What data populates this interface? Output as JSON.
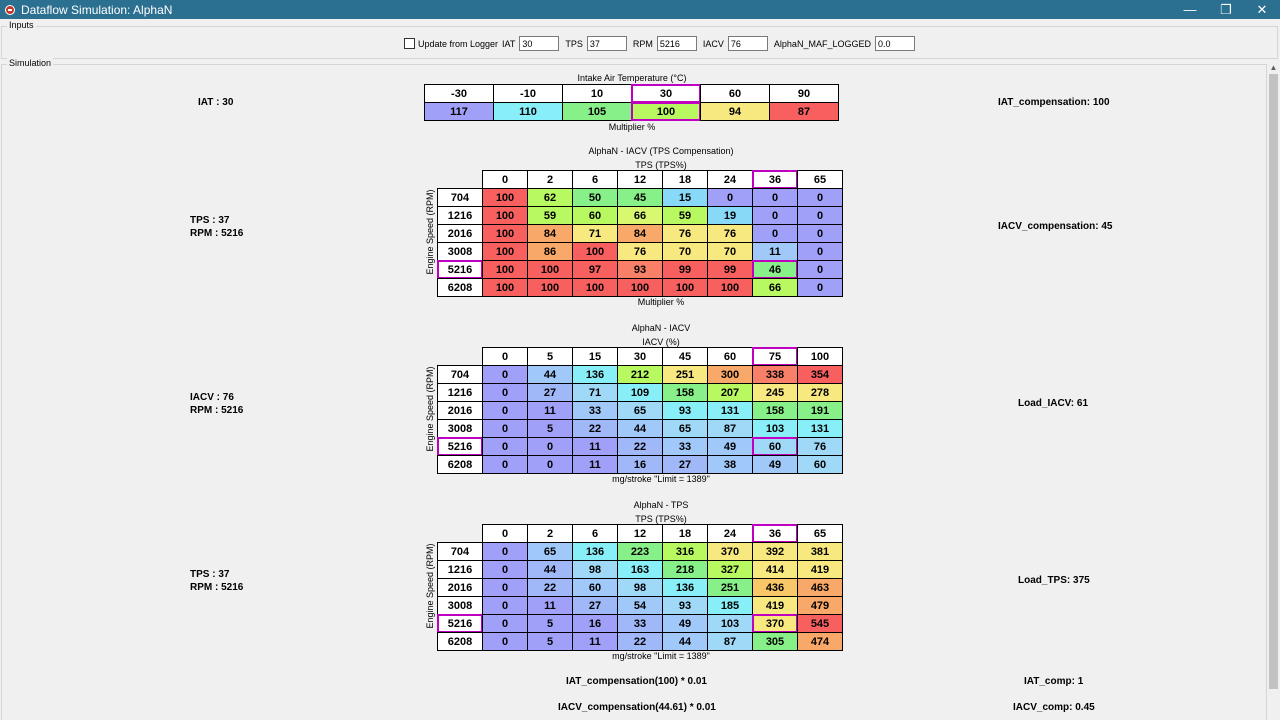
{
  "window": {
    "title": "Dataflow Simulation: AlphaN",
    "min_icon": "minimize-icon",
    "max_icon": "restore-icon",
    "close_icon": "close-icon"
  },
  "inputs": {
    "group_label": "Inputs",
    "update_label": "Update from Logger",
    "iat_label": "IAT",
    "iat_value": "30",
    "tps_label": "TPS",
    "tps_value": "37",
    "rpm_label": "RPM",
    "rpm_value": "5216",
    "iacv_label": "IACV",
    "iacv_value": "76",
    "maf_label": "AlphaN_MAF_LOGGED",
    "maf_value": "0.0"
  },
  "simulation": {
    "group_label": "Simulation",
    "iat_block": {
      "left_text": "IAT : 30",
      "right_text": "IAT_compensation: 100",
      "title": "Intake Air Temperature (°C)",
      "footer": "Multiplier %",
      "headers": [
        "-30",
        "-10",
        "10",
        "30",
        "60",
        "90"
      ],
      "values": [
        "117",
        "110",
        "105",
        "100",
        "94",
        "87"
      ],
      "colors": [
        "#a0a0f8",
        "#88eef8",
        "#88f088",
        "#b8f860",
        "#f8e880",
        "#f86060"
      ],
      "selected": 3
    },
    "tables": [
      {
        "left_line1": "TPS : 37",
        "left_line2": "RPM : 5216",
        "right_text": "IACV_compensation: 45",
        "title": "AlphaN - IACV (TPS Compensation)",
        "subtitle": "TPS (TPS%)",
        "ylabel": "Engine Speed (RPM)",
        "footer": "Multiplier %",
        "col_headers": [
          "0",
          "2",
          "6",
          "12",
          "18",
          "24",
          "36",
          "65"
        ],
        "row_headers": [
          "704",
          "1216",
          "2016",
          "3008",
          "5216",
          "6208"
        ],
        "rows": [
          [
            "100",
            "62",
            "50",
            "45",
            "15",
            "0",
            "0",
            "0"
          ],
          [
            "100",
            "59",
            "60",
            "66",
            "59",
            "19",
            "0",
            "0"
          ],
          [
            "100",
            "84",
            "71",
            "84",
            "76",
            "76",
            "0",
            "0"
          ],
          [
            "100",
            "86",
            "100",
            "76",
            "70",
            "70",
            "11",
            "0"
          ],
          [
            "100",
            "100",
            "97",
            "93",
            "99",
            "99",
            "46",
            "0"
          ],
          [
            "100",
            "100",
            "100",
            "100",
            "100",
            "100",
            "66",
            "0"
          ]
        ],
        "colors": [
          [
            "#f86060",
            "#b8f860",
            "#88f088",
            "#88f088",
            "#88d8f8",
            "#a0a0f8",
            "#a0a0f8",
            "#a0a0f8"
          ],
          [
            "#f86060",
            "#b8f860",
            "#b8f860",
            "#d8f870",
            "#b8f860",
            "#88d8f8",
            "#a0a0f8",
            "#a0a0f8"
          ],
          [
            "#f86060",
            "#f8a868",
            "#f8e880",
            "#f8a868",
            "#f8e880",
            "#f8e880",
            "#a0a0f8",
            "#a0a0f8"
          ],
          [
            "#f86060",
            "#f8a868",
            "#f86060",
            "#f8e880",
            "#f8e880",
            "#f8e880",
            "#a0c8f8",
            "#a0a0f8"
          ],
          [
            "#f86060",
            "#f86060",
            "#f86060",
            "#f88068",
            "#f86060",
            "#f86060",
            "#88f088",
            "#a0a0f8"
          ],
          [
            "#f86060",
            "#f86060",
            "#f86060",
            "#f86060",
            "#f86060",
            "#f86060",
            "#b8f860",
            "#a0a0f8"
          ]
        ],
        "sel_row": 4,
        "sel_col": 6
      },
      {
        "left_line1": "IACV : 76",
        "left_line2": "RPM : 5216",
        "right_text": "Load_IACV: 61",
        "title": "AlphaN - IACV",
        "subtitle": "IACV (%)",
        "ylabel": "Engine Speed (RPM)",
        "footer": "mg/stroke \"Limit = 1389\"",
        "col_headers": [
          "0",
          "5",
          "15",
          "30",
          "45",
          "60",
          "75",
          "100"
        ],
        "row_headers": [
          "704",
          "1216",
          "2016",
          "3008",
          "5216",
          "6208"
        ],
        "rows": [
          [
            "0",
            "44",
            "136",
            "212",
            "251",
            "300",
            "338",
            "354"
          ],
          [
            "0",
            "27",
            "71",
            "109",
            "158",
            "207",
            "245",
            "278"
          ],
          [
            "0",
            "11",
            "33",
            "65",
            "93",
            "131",
            "158",
            "191"
          ],
          [
            "0",
            "5",
            "22",
            "44",
            "65",
            "87",
            "103",
            "131"
          ],
          [
            "0",
            "0",
            "11",
            "22",
            "33",
            "49",
            "60",
            "76"
          ],
          [
            "0",
            "0",
            "11",
            "16",
            "27",
            "38",
            "49",
            "60"
          ]
        ],
        "colors": [
          [
            "#a0a0f8",
            "#a0c8f8",
            "#88eef8",
            "#b8f860",
            "#f8e880",
            "#f8a868",
            "#f88068",
            "#f86060"
          ],
          [
            "#a0a0f8",
            "#a0b8f8",
            "#a0d8f8",
            "#88eef8",
            "#88f088",
            "#b8f860",
            "#f8e880",
            "#f8e880"
          ],
          [
            "#a0a0f8",
            "#a0a0f8",
            "#a0c8f8",
            "#a0d8f8",
            "#88eef8",
            "#88eef8",
            "#88f088",
            "#88f088"
          ],
          [
            "#a0a0f8",
            "#a0a0f8",
            "#a0b8f8",
            "#a0c8f8",
            "#a0d8f8",
            "#a0d8f8",
            "#88eef8",
            "#88eef8"
          ],
          [
            "#a0a0f8",
            "#a0a0f8",
            "#a0a0f8",
            "#a0b8f8",
            "#a0c8f8",
            "#a0c8f8",
            "#a0d8f8",
            "#a0d8f8"
          ],
          [
            "#a0a0f8",
            "#a0a0f8",
            "#a0a0f8",
            "#a0b8f8",
            "#a0b8f8",
            "#a0c8f8",
            "#a0c8f8",
            "#a0d8f8"
          ]
        ],
        "sel_row": 4,
        "sel_col": 6
      },
      {
        "left_line1": "TPS : 37",
        "left_line2": "RPM : 5216",
        "right_text": "Load_TPS: 375",
        "title": "AlphaN - TPS",
        "subtitle": "TPS (TPS%)",
        "ylabel": "Engine Speed (RPM)",
        "footer": "mg/stroke \"Limit = 1389\"",
        "col_headers": [
          "0",
          "2",
          "6",
          "12",
          "18",
          "24",
          "36",
          "65"
        ],
        "row_headers": [
          "704",
          "1216",
          "2016",
          "3008",
          "5216",
          "6208"
        ],
        "rows": [
          [
            "0",
            "65",
            "136",
            "223",
            "316",
            "370",
            "392",
            "381"
          ],
          [
            "0",
            "44",
            "98",
            "163",
            "218",
            "327",
            "414",
            "419"
          ],
          [
            "0",
            "22",
            "60",
            "98",
            "136",
            "251",
            "436",
            "463"
          ],
          [
            "0",
            "11",
            "27",
            "54",
            "93",
            "185",
            "419",
            "479"
          ],
          [
            "0",
            "5",
            "16",
            "33",
            "49",
            "103",
            "370",
            "545"
          ],
          [
            "0",
            "5",
            "11",
            "22",
            "44",
            "87",
            "305",
            "474"
          ]
        ],
        "colors": [
          [
            "#a0a0f8",
            "#a0c8f8",
            "#88eef8",
            "#88f088",
            "#b8f860",
            "#f8e880",
            "#f8e880",
            "#f8e880"
          ],
          [
            "#a0a0f8",
            "#a0b8f8",
            "#a0d8f8",
            "#88eef8",
            "#88f088",
            "#b8f860",
            "#f8e880",
            "#f8e880"
          ],
          [
            "#a0a0f8",
            "#a0b8f8",
            "#a0c8f8",
            "#a0d8f8",
            "#88eef8",
            "#88f088",
            "#f8c868",
            "#f8a868"
          ],
          [
            "#a0a0f8",
            "#a0a0f8",
            "#a0b8f8",
            "#a0c8f8",
            "#a0d8f8",
            "#88eef8",
            "#f8e880",
            "#f8a868"
          ],
          [
            "#a0a0f8",
            "#a0a0f8",
            "#a0a0f8",
            "#a0b8f8",
            "#a0c8f8",
            "#a0d8f8",
            "#f8e880",
            "#f86060"
          ],
          [
            "#a0a0f8",
            "#a0a0f8",
            "#a0a0f8",
            "#a0b8f8",
            "#a0c8f8",
            "#a0d8f8",
            "#88f088",
            "#f8a868"
          ]
        ],
        "sel_row": 4,
        "sel_col": 6
      }
    ],
    "formulas": [
      {
        "expr": "IAT_compensation(100) * 0.01",
        "result": "IAT_comp: 1"
      },
      {
        "expr": "IACV_compensation(44.61) * 0.01",
        "result": "IACV_comp: 0.45"
      }
    ]
  }
}
